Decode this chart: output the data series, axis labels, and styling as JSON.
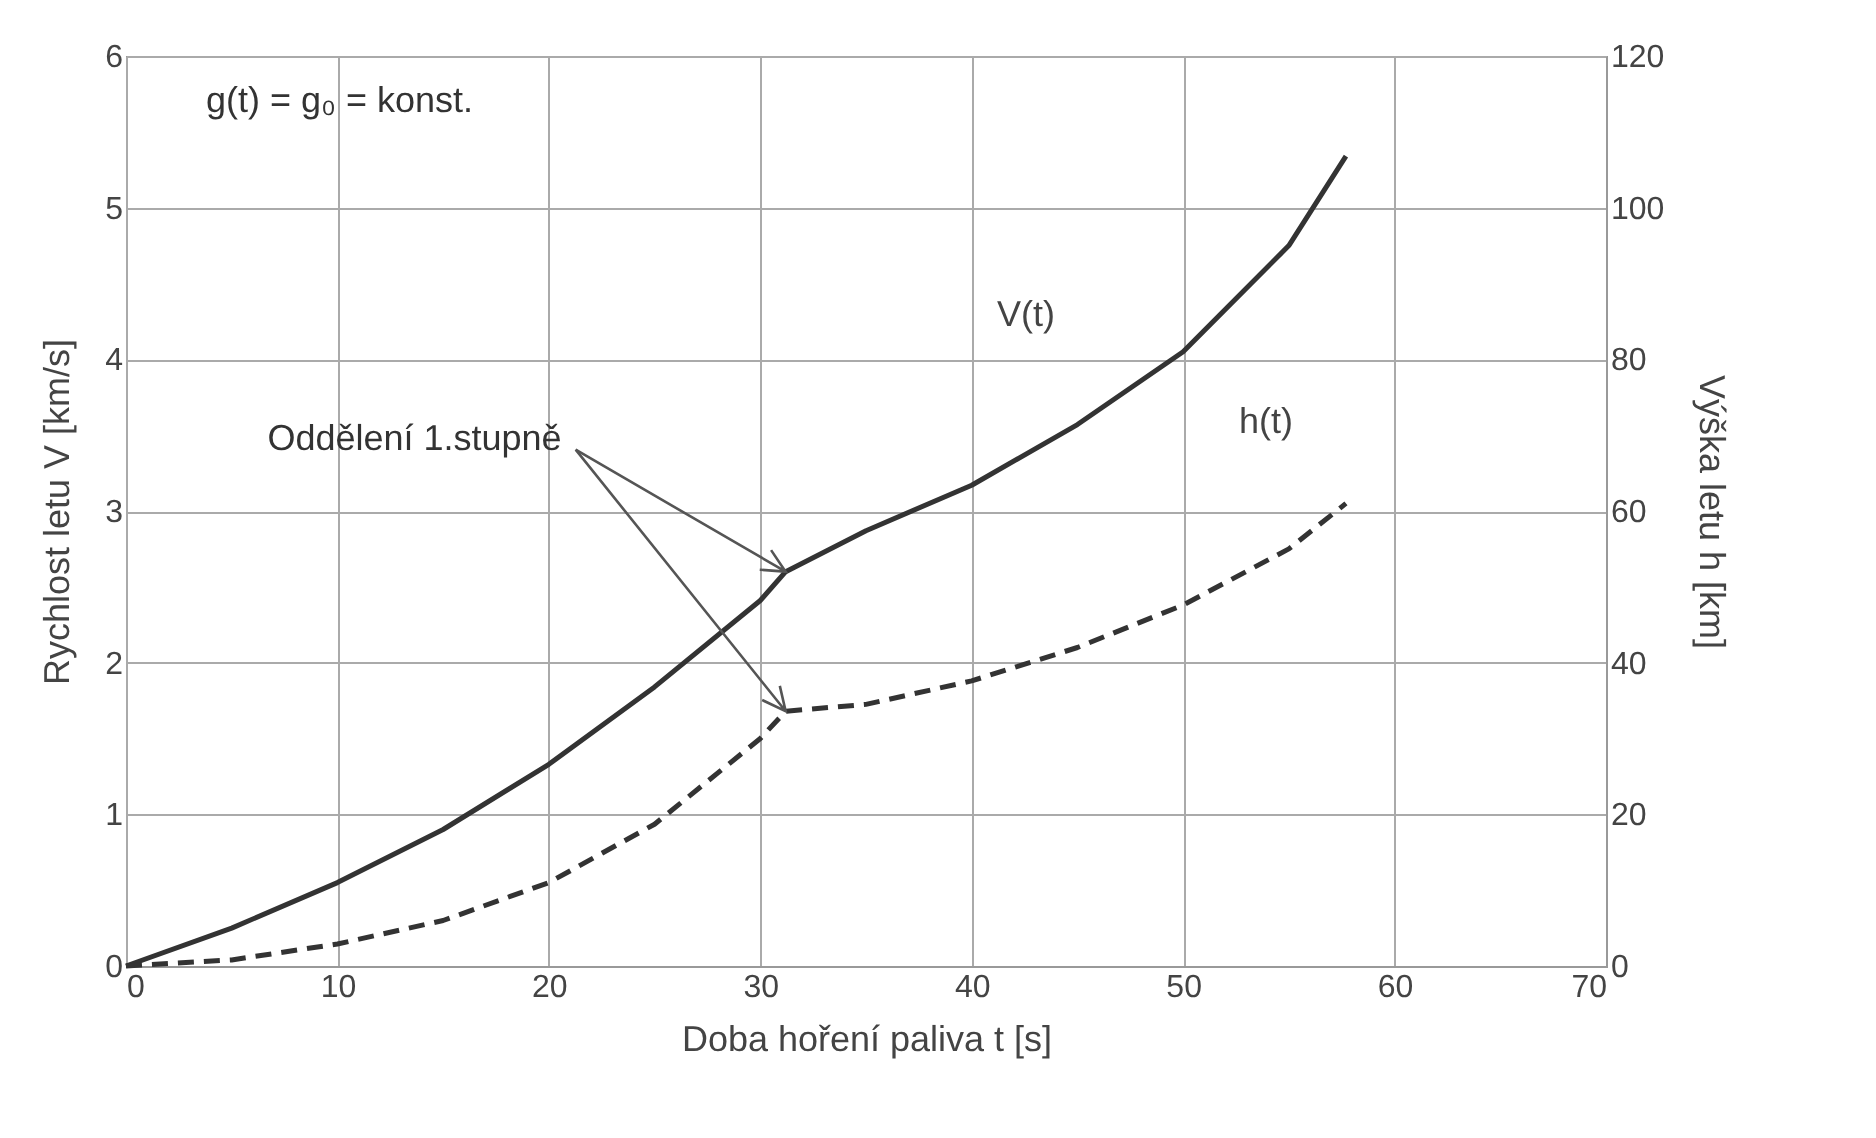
{
  "chart_data": {
    "type": "line",
    "xlabel": "Doba hoření paliva t [s]",
    "ylabel": "Rychlost letu  V [km/s]",
    "y2label": "Výška letu h [km]",
    "annotations": [
      "g(t) = g₀ = konst.",
      {
        "text": "Oddělení 1.stupně",
        "x": 31.2,
        "y": 2.6
      }
    ],
    "series": [
      {
        "name": "V(t)",
        "color": "#333333",
        "line_style": "solid",
        "x": [
          0,
          5,
          10,
          15,
          20,
          25,
          30,
          31.2,
          35,
          40,
          45,
          50,
          55,
          57.7
        ],
        "values": [
          0,
          0.25,
          0.55,
          0.9,
          1.33,
          1.84,
          2.41,
          2.6,
          2.87,
          3.17,
          3.57,
          4.05,
          4.75,
          5.34
        ]
      },
      {
        "name": "h(t)",
        "color": "#333333",
        "line_style": "dashed",
        "axis": "y2",
        "x": [
          0,
          5,
          10,
          15,
          20,
          25,
          30,
          31.2,
          35,
          40,
          45,
          50,
          55,
          57.7
        ],
        "values": [
          0,
          0.8,
          2.9,
          6,
          11,
          18.7,
          30,
          33.6,
          34.5,
          37.6,
          42,
          47.6,
          55,
          61
        ]
      }
    ],
    "xlim": [
      0,
      70
    ],
    "xticks": [
      0,
      10,
      20,
      30,
      40,
      50,
      60,
      70
    ],
    "ylim": [
      0,
      6
    ],
    "yticks": [
      0,
      1,
      2,
      3,
      4,
      5,
      6
    ],
    "y2lim": [
      0,
      120
    ],
    "y2ticks": [
      0,
      20,
      40,
      60,
      80,
      100,
      120
    ],
    "grid": true
  }
}
